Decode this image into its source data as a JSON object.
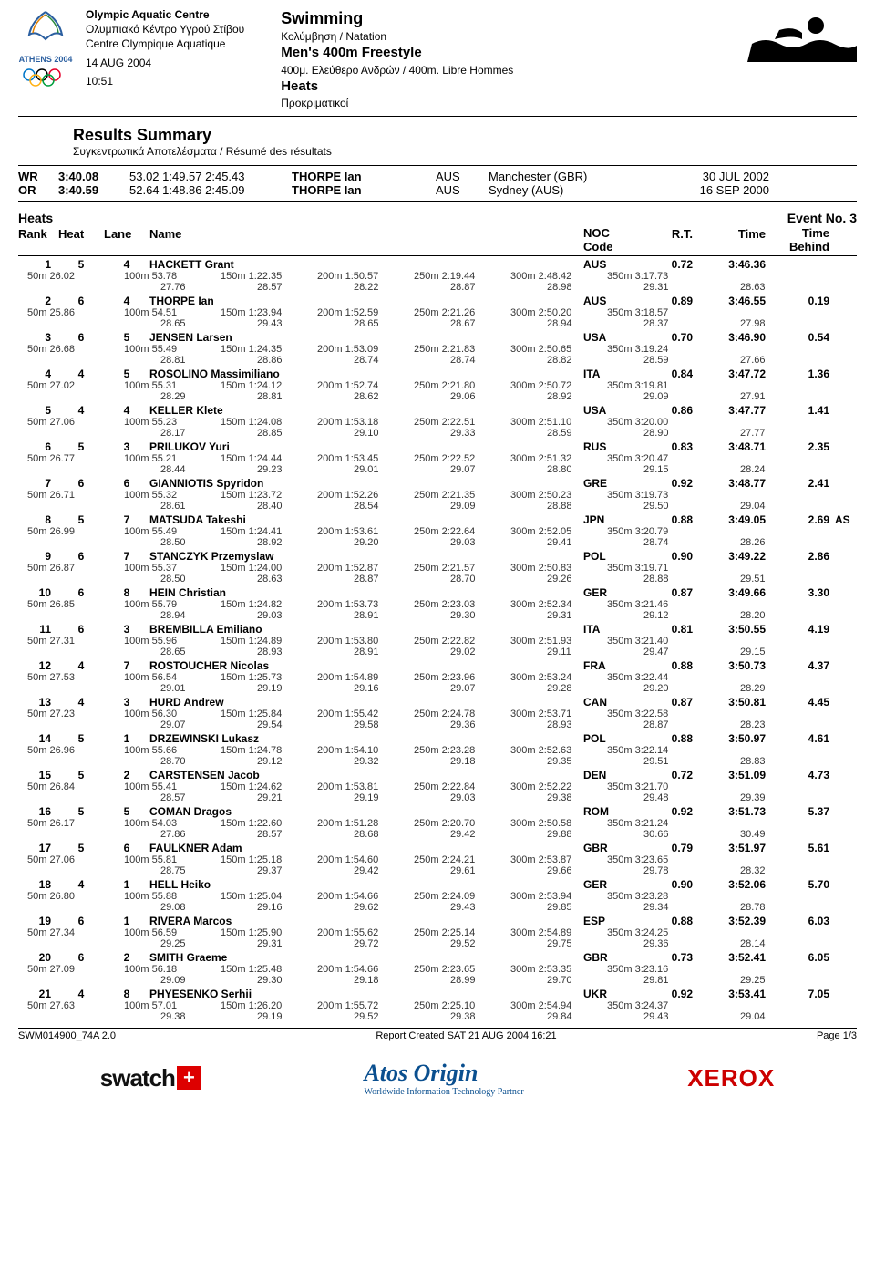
{
  "header": {
    "venue_en": "Olympic Aquatic Centre",
    "venue_el": "Ολυμπιακό Κέντρο Υγρού Στίβου",
    "venue_fr": "Centre Olympique Aquatique",
    "date": "14 AUG 2004",
    "time": "10:51",
    "discipline": "Swimming",
    "discipline_sub": "Κολύμβηση / Natation",
    "event": "Men's 400m Freestyle",
    "event_sub": "400μ. Ελεύθερο Ανδρών / 400m. Libre Hommes",
    "phase": "Heats",
    "phase_sub": "Προκριματικοί",
    "logo_label": "ATHENS 2004"
  },
  "subhead": {
    "title": "Results Summary",
    "sub": "Συγκεντρωτικά Αποτελέσματα / Résumé des résultats"
  },
  "records": [
    {
      "label": "WR",
      "time": "3:40.08",
      "splits": "53.02 1:49.57 2:45.43",
      "name": "THORPE Ian",
      "noc": "AUS",
      "loc": "Manchester (GBR)",
      "date": "30 JUL 2002"
    },
    {
      "label": "OR",
      "time": "3:40.59",
      "splits": "52.64 1:48.86 2:45.09",
      "name": "THORPE Ian",
      "noc": "AUS",
      "loc": "Sydney (AUS)",
      "date": "16 SEP 2000"
    }
  ],
  "section": {
    "left": "Heats",
    "right": "Event No. 3"
  },
  "colhead": {
    "rank": "Rank",
    "heat": "Heat",
    "lane": "Lane",
    "name": "Name",
    "noc": "NOC Code",
    "rt": "R.T.",
    "time": "Time",
    "behind": "Time Behind"
  },
  "results": [
    {
      "rank": "1",
      "heat": "5",
      "lane": "4",
      "name": "HACKETT Grant",
      "noc": "AUS",
      "rt": "0.72",
      "time": "3:46.36",
      "behind": "",
      "note": "",
      "s1": [
        "50m 26.02",
        "100m 53.78",
        "150m 1:22.35",
        "200m 1:50.57",
        "250m 2:19.44",
        "300m 2:48.42",
        "350m 3:17.73",
        ""
      ],
      "s2": [
        "",
        "27.76",
        "28.57",
        "28.22",
        "28.87",
        "28.98",
        "29.31",
        "28.63"
      ]
    },
    {
      "rank": "2",
      "heat": "6",
      "lane": "4",
      "name": "THORPE Ian",
      "noc": "AUS",
      "rt": "0.89",
      "time": "3:46.55",
      "behind": "0.19",
      "note": "",
      "s1": [
        "50m 25.86",
        "100m 54.51",
        "150m 1:23.94",
        "200m 1:52.59",
        "250m 2:21.26",
        "300m 2:50.20",
        "350m 3:18.57",
        ""
      ],
      "s2": [
        "",
        "28.65",
        "29.43",
        "28.65",
        "28.67",
        "28.94",
        "28.37",
        "27.98"
      ]
    },
    {
      "rank": "3",
      "heat": "6",
      "lane": "5",
      "name": "JENSEN Larsen",
      "noc": "USA",
      "rt": "0.70",
      "time": "3:46.90",
      "behind": "0.54",
      "note": "",
      "s1": [
        "50m 26.68",
        "100m 55.49",
        "150m 1:24.35",
        "200m 1:53.09",
        "250m 2:21.83",
        "300m 2:50.65",
        "350m 3:19.24",
        ""
      ],
      "s2": [
        "",
        "28.81",
        "28.86",
        "28.74",
        "28.74",
        "28.82",
        "28.59",
        "27.66"
      ]
    },
    {
      "rank": "4",
      "heat": "4",
      "lane": "5",
      "name": "ROSOLINO Massimiliano",
      "noc": "ITA",
      "rt": "0.84",
      "time": "3:47.72",
      "behind": "1.36",
      "note": "",
      "s1": [
        "50m 27.02",
        "100m 55.31",
        "150m 1:24.12",
        "200m 1:52.74",
        "250m 2:21.80",
        "300m 2:50.72",
        "350m 3:19.81",
        ""
      ],
      "s2": [
        "",
        "28.29",
        "28.81",
        "28.62",
        "29.06",
        "28.92",
        "29.09",
        "27.91"
      ]
    },
    {
      "rank": "5",
      "heat": "4",
      "lane": "4",
      "name": "KELLER Klete",
      "noc": "USA",
      "rt": "0.86",
      "time": "3:47.77",
      "behind": "1.41",
      "note": "",
      "s1": [
        "50m 27.06",
        "100m 55.23",
        "150m 1:24.08",
        "200m 1:53.18",
        "250m 2:22.51",
        "300m 2:51.10",
        "350m 3:20.00",
        ""
      ],
      "s2": [
        "",
        "28.17",
        "28.85",
        "29.10",
        "29.33",
        "28.59",
        "28.90",
        "27.77"
      ]
    },
    {
      "rank": "6",
      "heat": "5",
      "lane": "3",
      "name": "PRILUKOV Yuri",
      "noc": "RUS",
      "rt": "0.83",
      "time": "3:48.71",
      "behind": "2.35",
      "note": "",
      "s1": [
        "50m 26.77",
        "100m 55.21",
        "150m 1:24.44",
        "200m 1:53.45",
        "250m 2:22.52",
        "300m 2:51.32",
        "350m 3:20.47",
        ""
      ],
      "s2": [
        "",
        "28.44",
        "29.23",
        "29.01",
        "29.07",
        "28.80",
        "29.15",
        "28.24"
      ]
    },
    {
      "rank": "7",
      "heat": "6",
      "lane": "6",
      "name": "GIANNIOTIS Spyridon",
      "noc": "GRE",
      "rt": "0.92",
      "time": "3:48.77",
      "behind": "2.41",
      "note": "",
      "s1": [
        "50m 26.71",
        "100m 55.32",
        "150m 1:23.72",
        "200m 1:52.26",
        "250m 2:21.35",
        "300m 2:50.23",
        "350m 3:19.73",
        ""
      ],
      "s2": [
        "",
        "28.61",
        "28.40",
        "28.54",
        "29.09",
        "28.88",
        "29.50",
        "29.04"
      ]
    },
    {
      "rank": "8",
      "heat": "5",
      "lane": "7",
      "name": "MATSUDA Takeshi",
      "noc": "JPN",
      "rt": "0.88",
      "time": "3:49.05",
      "behind": "2.69",
      "note": "AS",
      "s1": [
        "50m 26.99",
        "100m 55.49",
        "150m 1:24.41",
        "200m 1:53.61",
        "250m 2:22.64",
        "300m 2:52.05",
        "350m 3:20.79",
        ""
      ],
      "s2": [
        "",
        "28.50",
        "28.92",
        "29.20",
        "29.03",
        "29.41",
        "28.74",
        "28.26"
      ]
    },
    {
      "rank": "9",
      "heat": "6",
      "lane": "7",
      "name": "STANCZYK Przemyslaw",
      "noc": "POL",
      "rt": "0.90",
      "time": "3:49.22",
      "behind": "2.86",
      "note": "",
      "s1": [
        "50m 26.87",
        "100m 55.37",
        "150m 1:24.00",
        "200m 1:52.87",
        "250m 2:21.57",
        "300m 2:50.83",
        "350m 3:19.71",
        ""
      ],
      "s2": [
        "",
        "28.50",
        "28.63",
        "28.87",
        "28.70",
        "29.26",
        "28.88",
        "29.51"
      ]
    },
    {
      "rank": "10",
      "heat": "6",
      "lane": "8",
      "name": "HEIN Christian",
      "noc": "GER",
      "rt": "0.87",
      "time": "3:49.66",
      "behind": "3.30",
      "note": "",
      "s1": [
        "50m 26.85",
        "100m 55.79",
        "150m 1:24.82",
        "200m 1:53.73",
        "250m 2:23.03",
        "300m 2:52.34",
        "350m 3:21.46",
        ""
      ],
      "s2": [
        "",
        "28.94",
        "29.03",
        "28.91",
        "29.30",
        "29.31",
        "29.12",
        "28.20"
      ]
    },
    {
      "rank": "11",
      "heat": "6",
      "lane": "3",
      "name": "BREMBILLA Emiliano",
      "noc": "ITA",
      "rt": "0.81",
      "time": "3:50.55",
      "behind": "4.19",
      "note": "",
      "s1": [
        "50m 27.31",
        "100m 55.96",
        "150m 1:24.89",
        "200m 1:53.80",
        "250m 2:22.82",
        "300m 2:51.93",
        "350m 3:21.40",
        ""
      ],
      "s2": [
        "",
        "28.65",
        "28.93",
        "28.91",
        "29.02",
        "29.11",
        "29.47",
        "29.15"
      ]
    },
    {
      "rank": "12",
      "heat": "4",
      "lane": "7",
      "name": "ROSTOUCHER Nicolas",
      "noc": "FRA",
      "rt": "0.88",
      "time": "3:50.73",
      "behind": "4.37",
      "note": "",
      "s1": [
        "50m 27.53",
        "100m 56.54",
        "150m 1:25.73",
        "200m 1:54.89",
        "250m 2:23.96",
        "300m 2:53.24",
        "350m 3:22.44",
        ""
      ],
      "s2": [
        "",
        "29.01",
        "29.19",
        "29.16",
        "29.07",
        "29.28",
        "29.20",
        "28.29"
      ]
    },
    {
      "rank": "13",
      "heat": "4",
      "lane": "3",
      "name": "HURD Andrew",
      "noc": "CAN",
      "rt": "0.87",
      "time": "3:50.81",
      "behind": "4.45",
      "note": "",
      "s1": [
        "50m 27.23",
        "100m 56.30",
        "150m 1:25.84",
        "200m 1:55.42",
        "250m 2:24.78",
        "300m 2:53.71",
        "350m 3:22.58",
        ""
      ],
      "s2": [
        "",
        "29.07",
        "29.54",
        "29.58",
        "29.36",
        "28.93",
        "28.87",
        "28.23"
      ]
    },
    {
      "rank": "14",
      "heat": "5",
      "lane": "1",
      "name": "DRZEWINSKI Lukasz",
      "noc": "POL",
      "rt": "0.88",
      "time": "3:50.97",
      "behind": "4.61",
      "note": "",
      "s1": [
        "50m 26.96",
        "100m 55.66",
        "150m 1:24.78",
        "200m 1:54.10",
        "250m 2:23.28",
        "300m 2:52.63",
        "350m 3:22.14",
        ""
      ],
      "s2": [
        "",
        "28.70",
        "29.12",
        "29.32",
        "29.18",
        "29.35",
        "29.51",
        "28.83"
      ]
    },
    {
      "rank": "15",
      "heat": "5",
      "lane": "2",
      "name": "CARSTENSEN Jacob",
      "noc": "DEN",
      "rt": "0.72",
      "time": "3:51.09",
      "behind": "4.73",
      "note": "",
      "s1": [
        "50m 26.84",
        "100m 55.41",
        "150m 1:24.62",
        "200m 1:53.81",
        "250m 2:22.84",
        "300m 2:52.22",
        "350m 3:21.70",
        ""
      ],
      "s2": [
        "",
        "28.57",
        "29.21",
        "29.19",
        "29.03",
        "29.38",
        "29.48",
        "29.39"
      ]
    },
    {
      "rank": "16",
      "heat": "5",
      "lane": "5",
      "name": "COMAN Dragos",
      "noc": "ROM",
      "rt": "0.92",
      "time": "3:51.73",
      "behind": "5.37",
      "note": "",
      "s1": [
        "50m 26.17",
        "100m 54.03",
        "150m 1:22.60",
        "200m 1:51.28",
        "250m 2:20.70",
        "300m 2:50.58",
        "350m 3:21.24",
        ""
      ],
      "s2": [
        "",
        "27.86",
        "28.57",
        "28.68",
        "29.42",
        "29.88",
        "30.66",
        "30.49"
      ]
    },
    {
      "rank": "17",
      "heat": "5",
      "lane": "6",
      "name": "FAULKNER Adam",
      "noc": "GBR",
      "rt": "0.79",
      "time": "3:51.97",
      "behind": "5.61",
      "note": "",
      "s1": [
        "50m 27.06",
        "100m 55.81",
        "150m 1:25.18",
        "200m 1:54.60",
        "250m 2:24.21",
        "300m 2:53.87",
        "350m 3:23.65",
        ""
      ],
      "s2": [
        "",
        "28.75",
        "29.37",
        "29.42",
        "29.61",
        "29.66",
        "29.78",
        "28.32"
      ]
    },
    {
      "rank": "18",
      "heat": "4",
      "lane": "1",
      "name": "HELL Heiko",
      "noc": "GER",
      "rt": "0.90",
      "time": "3:52.06",
      "behind": "5.70",
      "note": "",
      "s1": [
        "50m 26.80",
        "100m 55.88",
        "150m 1:25.04",
        "200m 1:54.66",
        "250m 2:24.09",
        "300m 2:53.94",
        "350m 3:23.28",
        ""
      ],
      "s2": [
        "",
        "29.08",
        "29.16",
        "29.62",
        "29.43",
        "29.85",
        "29.34",
        "28.78"
      ]
    },
    {
      "rank": "19",
      "heat": "6",
      "lane": "1",
      "name": "RIVERA Marcos",
      "noc": "ESP",
      "rt": "0.88",
      "time": "3:52.39",
      "behind": "6.03",
      "note": "",
      "s1": [
        "50m 27.34",
        "100m 56.59",
        "150m 1:25.90",
        "200m 1:55.62",
        "250m 2:25.14",
        "300m 2:54.89",
        "350m 3:24.25",
        ""
      ],
      "s2": [
        "",
        "29.25",
        "29.31",
        "29.72",
        "29.52",
        "29.75",
        "29.36",
        "28.14"
      ]
    },
    {
      "rank": "20",
      "heat": "6",
      "lane": "2",
      "name": "SMITH Graeme",
      "noc": "GBR",
      "rt": "0.73",
      "time": "3:52.41",
      "behind": "6.05",
      "note": "",
      "s1": [
        "50m 27.09",
        "100m 56.18",
        "150m 1:25.48",
        "200m 1:54.66",
        "250m 2:23.65",
        "300m 2:53.35",
        "350m 3:23.16",
        ""
      ],
      "s2": [
        "",
        "29.09",
        "29.30",
        "29.18",
        "28.99",
        "29.70",
        "29.81",
        "29.25"
      ]
    },
    {
      "rank": "21",
      "heat": "4",
      "lane": "8",
      "name": "PHYESENKO Serhii",
      "noc": "UKR",
      "rt": "0.92",
      "time": "3:53.41",
      "behind": "7.05",
      "note": "",
      "s1": [
        "50m 27.63",
        "100m 57.01",
        "150m 1:26.20",
        "200m 1:55.72",
        "250m 2:25.10",
        "300m 2:54.94",
        "350m 3:24.37",
        ""
      ],
      "s2": [
        "",
        "29.38",
        "29.19",
        "29.52",
        "29.38",
        "29.84",
        "29.43",
        "29.04"
      ]
    }
  ],
  "footer": {
    "left": "SWM014900_74A 2.0",
    "center": "Report Created  SAT 21 AUG 2004 16:21",
    "right": "Page 1/3"
  },
  "sponsors": {
    "swatch": "swatch",
    "atos": "Atos Origin",
    "atos_sub": "Worldwide Information Technology Partner",
    "xerox": "XEROX"
  }
}
